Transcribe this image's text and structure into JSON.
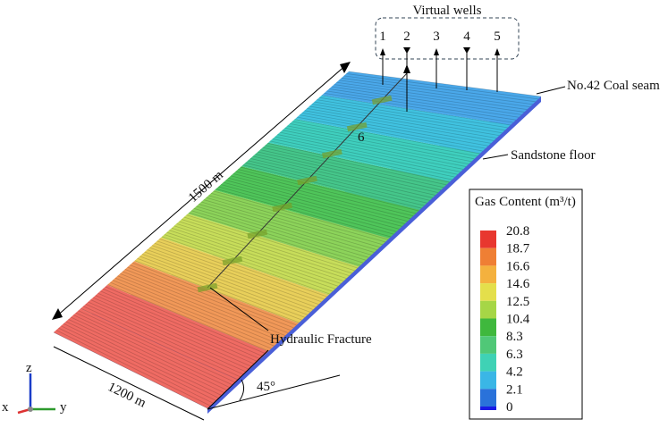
{
  "labels": {
    "virtual_wells": "Virtual wells",
    "wells": [
      "1",
      "2",
      "3",
      "4",
      "5"
    ],
    "well_6": "6",
    "coal_seam": "No.42 Coal seam",
    "sandstone": "Sandstone floor",
    "length": "1500 m",
    "width": "1200 m",
    "angle": "45°",
    "fracture": "Hydraulic Fracture"
  },
  "axes": {
    "z": "z",
    "x": "x",
    "y": "y"
  },
  "legend": {
    "title": "Gas Content (m³/t)",
    "labels": [
      "20.8",
      "18.7",
      "16.6",
      "14.6",
      "12.5",
      "10.4",
      "8.3",
      "6.3",
      "4.2",
      "2.1",
      "0"
    ],
    "colors": [
      "#e8372f",
      "#ef7f34",
      "#f4b13e",
      "#e4df4b",
      "#a6d646",
      "#3fb83d",
      "#50c877",
      "#3fd2b5",
      "#3ab6e6",
      "#2a72da"
    ]
  }
}
